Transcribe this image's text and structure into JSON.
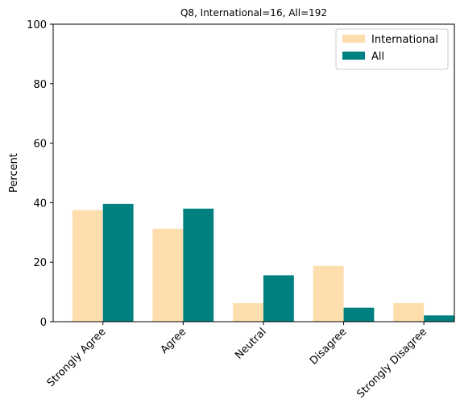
{
  "chart_data": {
    "type": "bar",
    "title": "Q8, International=16, All=192",
    "xlabel": "",
    "ylabel": "Percent",
    "ylim": [
      0,
      100
    ],
    "yticks": [
      0,
      20,
      40,
      60,
      80,
      100
    ],
    "categories": [
      "Strongly Agree",
      "Agree",
      "Neutral",
      "Disagree",
      "Strongly Disagree"
    ],
    "series": [
      {
        "name": "International",
        "color": "#FEDEAD",
        "values": [
          37.5,
          31.25,
          6.25,
          18.75,
          6.25
        ]
      },
      {
        "name": "All",
        "color": "#008080",
        "values": [
          39.6,
          38.0,
          15.6,
          4.7,
          2.1
        ]
      }
    ],
    "legend_position": "top-right",
    "grid": false
  }
}
